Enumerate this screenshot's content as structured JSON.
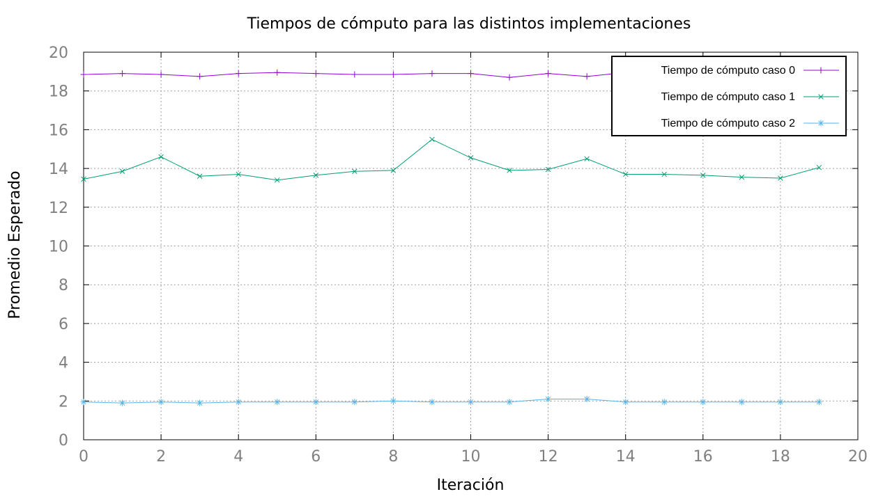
{
  "chart_data": {
    "type": "line",
    "title": "Tiempos de cómputo para las distintos implementaciones",
    "xlabel": "Iteración",
    "ylabel": "Promedio Esperado",
    "xlim": [
      0,
      20
    ],
    "ylim": [
      0,
      20
    ],
    "xticks": [
      "0",
      "2",
      "4",
      "6",
      "8",
      "10",
      "12",
      "14",
      "16",
      "18",
      "20"
    ],
    "yticks": [
      "0",
      "2",
      "4",
      "6",
      "8",
      "10",
      "12",
      "14",
      "16",
      "18",
      "20"
    ],
    "grid": true,
    "legend_position": "top-right",
    "x": [
      0,
      1,
      2,
      3,
      4,
      5,
      6,
      7,
      8,
      9,
      10,
      11,
      12,
      13,
      14,
      15,
      16,
      17,
      18,
      19
    ],
    "series": [
      {
        "name": "Tiempo de cómputo caso 0",
        "color": "#9400d3",
        "marker": "plus",
        "values": [
          18.85,
          18.9,
          18.85,
          18.75,
          18.9,
          18.95,
          18.9,
          18.85,
          18.85,
          18.9,
          18.9,
          18.7,
          18.9,
          18.75,
          18.95,
          19.2,
          18.8,
          18.8,
          18.75,
          18.8
        ]
      },
      {
        "name": "Tiempo de cómputo caso 1",
        "color": "#009e73",
        "marker": "cross",
        "values": [
          13.45,
          13.85,
          14.6,
          13.6,
          13.7,
          13.4,
          13.65,
          13.85,
          13.9,
          15.5,
          14.55,
          13.9,
          13.95,
          14.5,
          13.7,
          13.7,
          13.65,
          13.55,
          13.5,
          14.05
        ]
      },
      {
        "name": "Tiempo de cómputo caso 2",
        "color": "#56b4e9",
        "marker": "star",
        "values": [
          1.95,
          1.9,
          1.95,
          1.9,
          1.95,
          1.95,
          1.95,
          1.95,
          2.0,
          1.95,
          1.95,
          1.95,
          2.1,
          2.1,
          1.95,
          1.95,
          1.95,
          1.95,
          1.95,
          1.95
        ]
      }
    ]
  }
}
